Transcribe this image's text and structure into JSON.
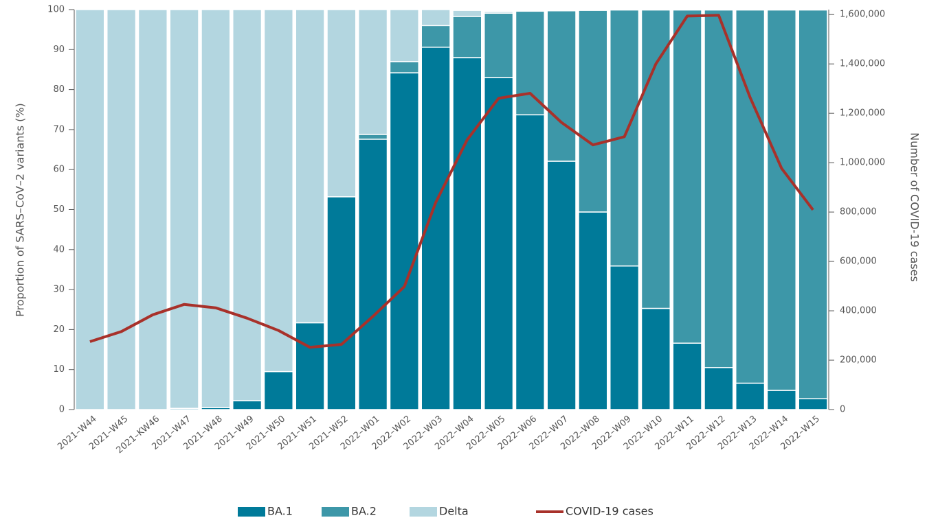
{
  "chart_data": {
    "type": "bar",
    "y_label": "Proportion of SARS–CoV–2 variants (%)",
    "y2_label": "Number of COVID-19 cases",
    "categories": [
      "2021–W44",
      "2021–W45",
      "2021–KW46",
      "2021–W47",
      "2021–W48",
      "2021–W49",
      "2021–W50",
      "2021–W51",
      "2021–W52",
      "2022–W01",
      "2022–W02",
      "2022–W03",
      "2022–W04",
      "2022–W05",
      "2022–W06",
      "2022–W07",
      "2022–W08",
      "2022–W09",
      "2022–W10",
      "2022–W11",
      "2022–W12",
      "2022–W13",
      "2022–W14",
      "2022–W15"
    ],
    "stacked": true,
    "series": [
      {
        "name": "BA.1",
        "color": "#007a99",
        "values": [
          0,
          0,
          0,
          0.3,
          0.5,
          2.2,
          9.5,
          21.7,
          53.2,
          67.6,
          84.2,
          90.6,
          88.0,
          83.0,
          73.7,
          62.1,
          49.4,
          35.9,
          25.3,
          16.6,
          10.5,
          6.6,
          4.8,
          2.7
        ]
      },
      {
        "name": "BA.2",
        "color": "#3d97a8",
        "values": [
          0,
          0,
          0,
          0,
          0,
          0,
          0,
          0,
          0,
          1.2,
          2.8,
          5.4,
          10.3,
          16.1,
          25.9,
          37.6,
          50.4,
          64.0,
          74.6,
          83.3,
          89.4,
          93.3,
          95.1,
          97.2
        ]
      },
      {
        "name": "Delta",
        "color": "#b3d6e0",
        "values": [
          100,
          100,
          100,
          99.7,
          99.5,
          97.8,
          90.5,
          78.3,
          46.8,
          31.2,
          13.0,
          4.0,
          1.5,
          0.4,
          0,
          0,
          0,
          0,
          0,
          0,
          0,
          0,
          0,
          0
        ]
      },
      {
        "name": "COVID-19 cases",
        "type": "line",
        "axis": "y2",
        "color": "#a8312a",
        "values": [
          275000,
          316000,
          384000,
          426000,
          412000,
          370000,
          320000,
          252000,
          264000,
          377000,
          498000,
          839000,
          1093000,
          1261000,
          1281000,
          1163000,
          1072000,
          1105000,
          1400000,
          1594000,
          1597000,
          1264000,
          977000,
          809000
        ]
      }
    ],
    "ylim": [
      0,
      100
    ],
    "yticks": [
      0,
      10,
      20,
      30,
      40,
      50,
      60,
      70,
      80,
      90,
      100
    ],
    "y2lim": [
      0,
      1620000
    ],
    "y2ticks": [
      0,
      {
        "value": 200000,
        "label": "200,000"
      },
      {
        "value": 400000,
        "label": "400,000"
      },
      {
        "value": 600000,
        "label": "600,000"
      },
      {
        "value": 800000,
        "label": "800,000"
      },
      {
        "value": 1000000,
        "label": "1,000,000"
      },
      {
        "value": 1200000,
        "label": "1,200,000"
      },
      {
        "value": 1400000,
        "label": "1,400,000"
      },
      {
        "value": 1600000,
        "label": "1,600,000"
      }
    ],
    "legend": "bottom"
  }
}
